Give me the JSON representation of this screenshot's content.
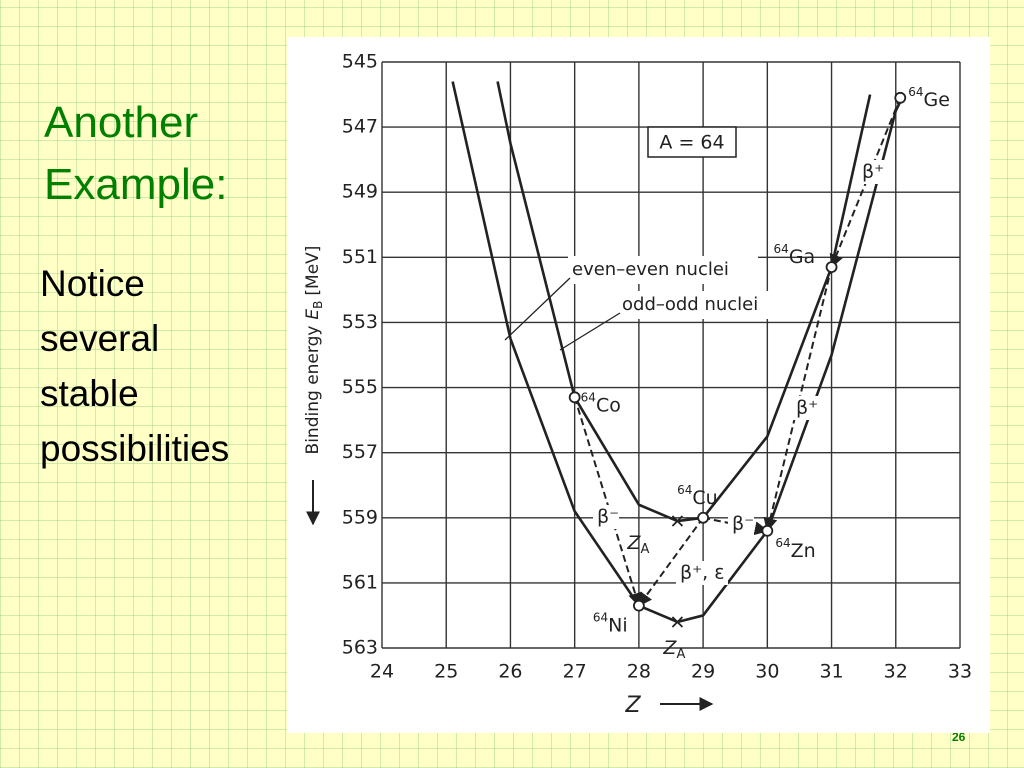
{
  "slide": {
    "title_lines": [
      "Another",
      "Example:"
    ],
    "body_lines": [
      "Notice",
      "several",
      "stable",
      "possibilities"
    ],
    "page_number": "26"
  },
  "chart_data": {
    "type": "line",
    "y_label": {
      "text": "Binding energy",
      "symbol": "E",
      "subscript": "B",
      "unit": "[MeV]"
    },
    "x_label": "Z",
    "xlim": [
      24,
      33
    ],
    "xticks": [
      24,
      25,
      26,
      27,
      28,
      29,
      30,
      31,
      32,
      33
    ],
    "ylim": [
      545,
      563
    ],
    "y_inverted": true,
    "yticks": [
      545,
      547,
      549,
      551,
      553,
      555,
      557,
      559,
      561,
      563
    ],
    "grid": true,
    "series": [
      {
        "name": "even–even nuclei",
        "color": "#222222",
        "x": [
          25.1,
          26,
          27,
          28,
          28.6,
          29,
          30,
          31,
          32,
          32.1
        ],
        "values": [
          545.6,
          553.5,
          558.8,
          561.7,
          562.2,
          562.0,
          559.4,
          554.0,
          546.5,
          546.1
        ]
      },
      {
        "name": "odd–odd nuclei",
        "color": "#222222",
        "x": [
          25.8,
          26,
          27,
          28,
          28.6,
          29,
          30,
          31,
          31.6
        ],
        "values": [
          545.6,
          547.5,
          555.3,
          558.6,
          559.1,
          559.0,
          556.5,
          551.3,
          546.0
        ]
      }
    ],
    "points": [
      {
        "mass": "64",
        "name": "Co",
        "x": 27,
        "y": 555.3
      },
      {
        "mass": "64",
        "name": "Ni",
        "x": 28,
        "y": 561.7
      },
      {
        "mass": "64",
        "name": "Cu",
        "x": 29,
        "y": 559.0
      },
      {
        "mass": "64",
        "name": "Zn",
        "x": 30,
        "y": 559.4
      },
      {
        "mass": "64",
        "name": "Ga",
        "x": 31,
        "y": 551.3
      },
      {
        "mass": "64",
        "name": "Ge",
        "x": 32.07,
        "y": 546.1
      }
    ],
    "decays": [
      {
        "label": "β⁻"
      },
      {
        "label": "β⁺, ε"
      },
      {
        "label": "β⁻"
      },
      {
        "label": "β⁺"
      },
      {
        "label": "β⁺"
      }
    ],
    "minima": [
      {
        "main": "Z",
        "sub": "A",
        "x": 28.6,
        "y": 559.1
      },
      {
        "main": "Z",
        "sub": "A",
        "x": 28.6,
        "y": 562.2
      }
    ],
    "annotation": "A = 64"
  }
}
